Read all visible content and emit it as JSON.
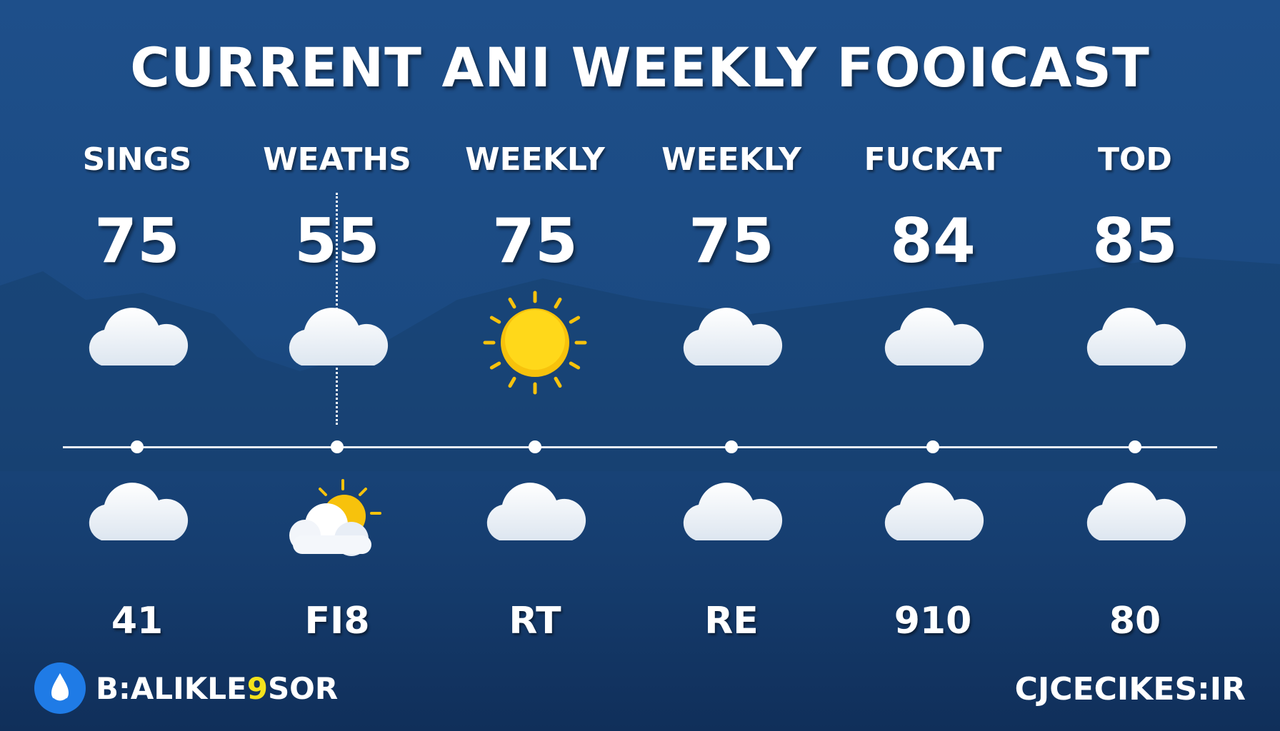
{
  "title": "CURRENT ANI WEEKLY FOOICAST",
  "columns": [
    {
      "label": "SINGS",
      "temp": "75",
      "icon": "cloud-icon",
      "lower_icon": "cloud-icon",
      "lower_label": "41"
    },
    {
      "label": "WEATHS",
      "temp": "55",
      "icon": "cloud-icon",
      "lower_icon": "partly-sunny-icon",
      "lower_label": "FI8"
    },
    {
      "label": "WEEKLY",
      "temp": "75",
      "icon": "sun-icon",
      "lower_icon": "cloud-icon",
      "lower_label": "RT"
    },
    {
      "label": "WEEKLY",
      "temp": "75",
      "icon": "cloud-icon",
      "lower_icon": "cloud-icon",
      "lower_label": "RE"
    },
    {
      "label": "FUCKAT",
      "temp": "84",
      "icon": "cloud-icon",
      "lower_icon": "cloud-icon",
      "lower_label": "910"
    },
    {
      "label": "TOD",
      "temp": "85",
      "icon": "cloud-icon",
      "lower_icon": "cloud-icon",
      "lower_label": "80"
    }
  ],
  "footer": {
    "brand_left_a": "B:ALIKLE",
    "brand_left_highlight": "9",
    "brand_left_b": "SOR",
    "brand_right": "CJCECIKES:IR",
    "logo_icon": "water-drop-icon"
  },
  "colors": {
    "background": "#1b4a82",
    "sun": "#f7c20c",
    "accent": "#1f7be6",
    "highlight": "#f3e21c"
  }
}
